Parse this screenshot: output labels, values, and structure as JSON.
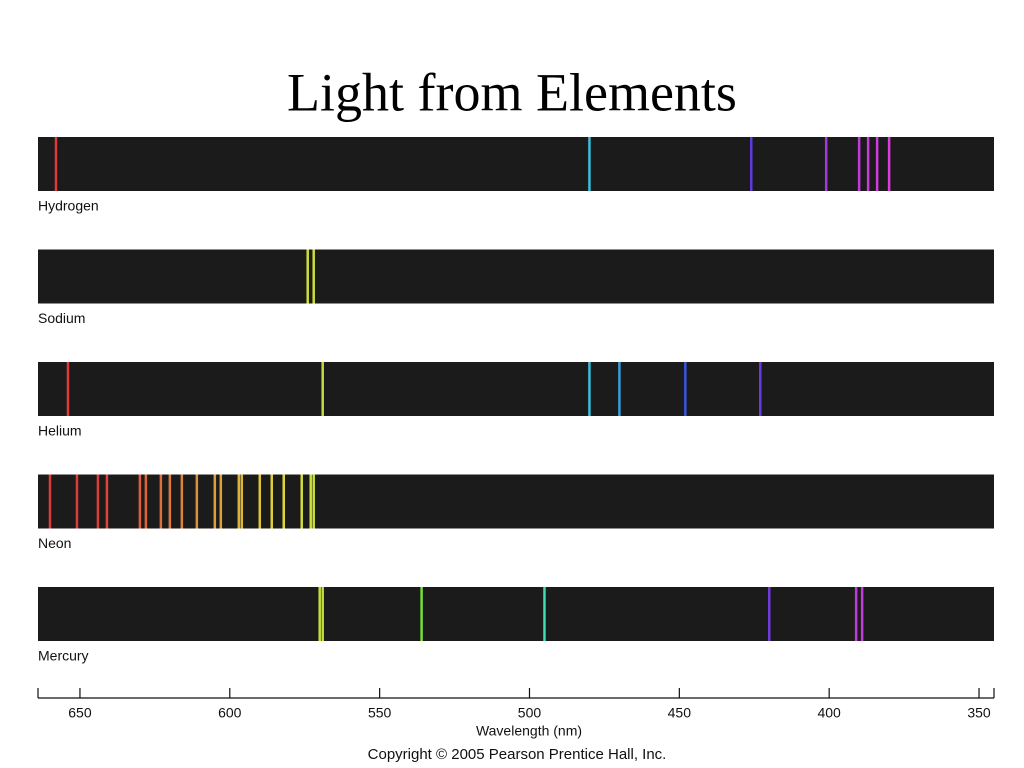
{
  "chart_data": {
    "type": "spectrum",
    "title": "Light from Elements",
    "xlabel": "Wavelength (nm)",
    "note": "Copyright © 2005 Pearson Prentice Hall, Inc.",
    "xlim": [
      664,
      345
    ],
    "xticks": [
      650,
      600,
      550,
      500,
      450,
      400,
      350
    ],
    "series": [
      {
        "name": "Hydrogen",
        "values": [
          658,
          480,
          426,
          401,
          390,
          387,
          384,
          380
        ]
      },
      {
        "name": "Sodium",
        "values": [
          574,
          572
        ]
      },
      {
        "name": "Helium",
        "values": [
          654,
          569,
          480,
          470,
          448,
          423
        ]
      },
      {
        "name": "Neon",
        "values": [
          660,
          651,
          644,
          641,
          630,
          628,
          623,
          620,
          616,
          611,
          605,
          603,
          597,
          596,
          590,
          586,
          582,
          576,
          573,
          572
        ]
      },
      {
        "name": "Mercury",
        "values": [
          570,
          569,
          536,
          495,
          420,
          391,
          389
        ]
      }
    ]
  }
}
